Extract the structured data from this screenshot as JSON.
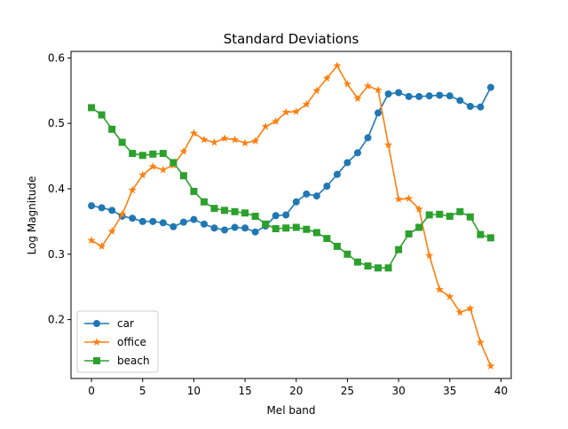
{
  "chart_data": {
    "type": "line",
    "title": "Standard Deviations",
    "xlabel": "Mel band",
    "ylabel": "Log Magnitude",
    "xlim": [
      -2,
      41
    ],
    "ylim": [
      0.11,
      0.61
    ],
    "xticks": [
      0,
      5,
      10,
      15,
      20,
      25,
      30,
      35,
      40
    ],
    "yticks": [
      0.2,
      0.3,
      0.4,
      0.5,
      0.6
    ],
    "ytick_labels": [
      "0.2",
      "0.3",
      "0.4",
      "0.5",
      "0.6"
    ],
    "grid": false,
    "legend_position": "lower-left",
    "x": [
      0,
      1,
      2,
      3,
      4,
      5,
      6,
      7,
      8,
      9,
      10,
      11,
      12,
      13,
      14,
      15,
      16,
      17,
      18,
      19,
      20,
      21,
      22,
      23,
      24,
      25,
      26,
      27,
      28,
      29,
      30,
      31,
      32,
      33,
      34,
      35,
      36,
      37,
      38,
      39
    ],
    "series": [
      {
        "name": "car",
        "color": "#1f77b4",
        "marker": "circle",
        "values": [
          0.374,
          0.371,
          0.367,
          0.358,
          0.355,
          0.35,
          0.35,
          0.348,
          0.342,
          0.349,
          0.353,
          0.346,
          0.34,
          0.337,
          0.341,
          0.34,
          0.334,
          0.343,
          0.359,
          0.36,
          0.38,
          0.392,
          0.389,
          0.404,
          0.422,
          0.44,
          0.455,
          0.478,
          0.516,
          0.545,
          0.547,
          0.541,
          0.541,
          0.542,
          0.543,
          0.542,
          0.535,
          0.526,
          0.525,
          0.555
        ]
      },
      {
        "name": "office",
        "color": "#ff7f0e",
        "marker": "star",
        "values": [
          0.321,
          0.312,
          0.335,
          0.361,
          0.398,
          0.421,
          0.434,
          0.429,
          0.436,
          0.457,
          0.485,
          0.475,
          0.471,
          0.477,
          0.475,
          0.47,
          0.473,
          0.495,
          0.503,
          0.517,
          0.518,
          0.529,
          0.55,
          0.569,
          0.588,
          0.56,
          0.538,
          0.557,
          0.551,
          0.467,
          0.384,
          0.385,
          0.369,
          0.298,
          0.246,
          0.235,
          0.211,
          0.217,
          0.165,
          0.129
        ]
      },
      {
        "name": "beach",
        "color": "#2ca02c",
        "marker": "square",
        "values": [
          0.524,
          0.513,
          0.491,
          0.471,
          0.454,
          0.451,
          0.453,
          0.454,
          0.44,
          0.42,
          0.396,
          0.38,
          0.37,
          0.367,
          0.365,
          0.363,
          0.358,
          0.346,
          0.339,
          0.34,
          0.341,
          0.338,
          0.333,
          0.324,
          0.312,
          0.3,
          0.288,
          0.282,
          0.279,
          0.279,
          0.307,
          0.331,
          0.341,
          0.36,
          0.361,
          0.358,
          0.365,
          0.357,
          0.33,
          0.325
        ]
      }
    ]
  }
}
